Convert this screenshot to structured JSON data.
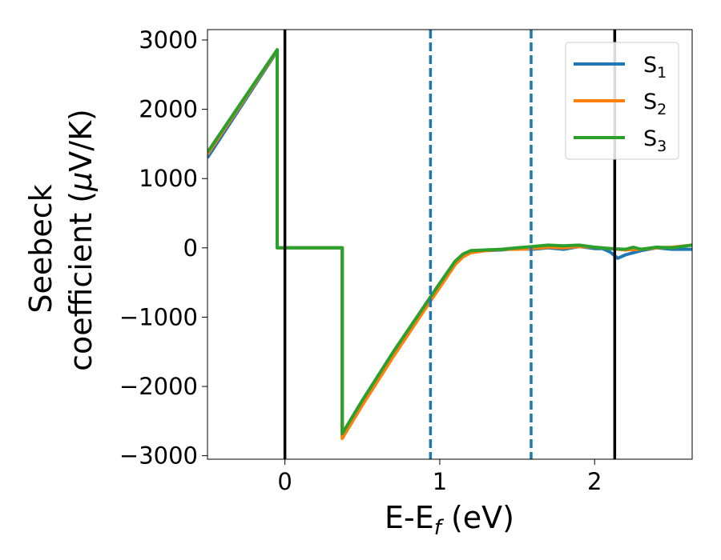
{
  "chart_data": {
    "type": "line",
    "title": "",
    "xlabel": {
      "main": "E-E",
      "sub": "f",
      "unit": " (eV)"
    },
    "ylabel": {
      "line1": "Seebeck",
      "line2_prefix": "coefficient  (",
      "mu": "μ",
      "line2_suffix": "V/K)"
    },
    "xlim": [
      -0.5,
      2.63
    ],
    "ylim": [
      -3050,
      3150
    ],
    "xticks": [
      0,
      1,
      2
    ],
    "xtick_labels": [
      "0",
      "1",
      "2"
    ],
    "yticks": [
      -3000,
      -2000,
      -1000,
      0,
      1000,
      2000,
      3000
    ],
    "ytick_labels": [
      "−3000",
      "−2000",
      "−1000",
      "0",
      "1000",
      "2000",
      "3000"
    ],
    "grid": false,
    "legend_position": "top-right",
    "vlines": [
      {
        "x": 0.0,
        "style": "solid",
        "color": "#000000"
      },
      {
        "x": 0.94,
        "style": "dashed",
        "color": "#1f77b4"
      },
      {
        "x": 1.59,
        "style": "dashed",
        "color": "#1f77b4"
      },
      {
        "x": 2.13,
        "style": "solid",
        "color": "#000000"
      }
    ],
    "series": [
      {
        "name": "S",
        "sub": "1",
        "color": "#1f77b4",
        "x": [
          -0.5,
          -0.05,
          -0.05,
          0.37,
          0.37,
          0.5,
          0.7,
          0.9,
          1.0,
          1.1,
          1.15,
          1.2,
          1.3,
          1.4,
          1.5,
          1.6,
          1.7,
          1.8,
          1.9,
          2.0,
          2.05,
          2.1,
          2.15,
          2.2,
          2.3,
          2.4,
          2.5,
          2.63
        ],
        "y": [
          1300,
          2840,
          0,
          0,
          -2720,
          -2230,
          -1540,
          -870,
          -540,
          -210,
          -100,
          -50,
          -40,
          -30,
          -10,
          -20,
          0,
          -20,
          20,
          -10,
          -10,
          -60,
          -150,
          -100,
          -40,
          0,
          -20,
          -20
        ]
      },
      {
        "name": "S",
        "sub": "2",
        "color": "#ff7f0e",
        "x": [
          -0.5,
          -0.05,
          -0.05,
          0.37,
          0.37,
          0.5,
          0.7,
          0.9,
          1.0,
          1.1,
          1.15,
          1.2,
          1.3,
          1.4,
          1.5,
          1.6,
          1.7,
          1.8,
          1.9,
          2.0,
          2.1,
          2.2,
          2.3,
          2.4,
          2.5,
          2.63
        ],
        "y": [
          1350,
          2850,
          0,
          0,
          -2750,
          -2270,
          -1570,
          -900,
          -570,
          -240,
          -130,
          -70,
          -40,
          -20,
          -20,
          -10,
          10,
          0,
          20,
          10,
          -10,
          -30,
          -20,
          0,
          10,
          40
        ]
      },
      {
        "name": "S",
        "sub": "3",
        "color": "#2ca02c",
        "x": [
          -0.5,
          -0.05,
          -0.05,
          0.37,
          0.37,
          0.5,
          0.7,
          0.9,
          1.0,
          1.1,
          1.15,
          1.2,
          1.3,
          1.4,
          1.5,
          1.6,
          1.7,
          1.8,
          1.9,
          2.0,
          2.1,
          2.2,
          2.25,
          2.3,
          2.4,
          2.5,
          2.63
        ],
        "y": [
          1380,
          2860,
          0,
          0,
          -2680,
          -2200,
          -1500,
          -840,
          -510,
          -190,
          -90,
          -40,
          -30,
          -20,
          0,
          20,
          40,
          30,
          40,
          10,
          -10,
          -20,
          10,
          -20,
          10,
          0,
          40
        ]
      }
    ]
  }
}
